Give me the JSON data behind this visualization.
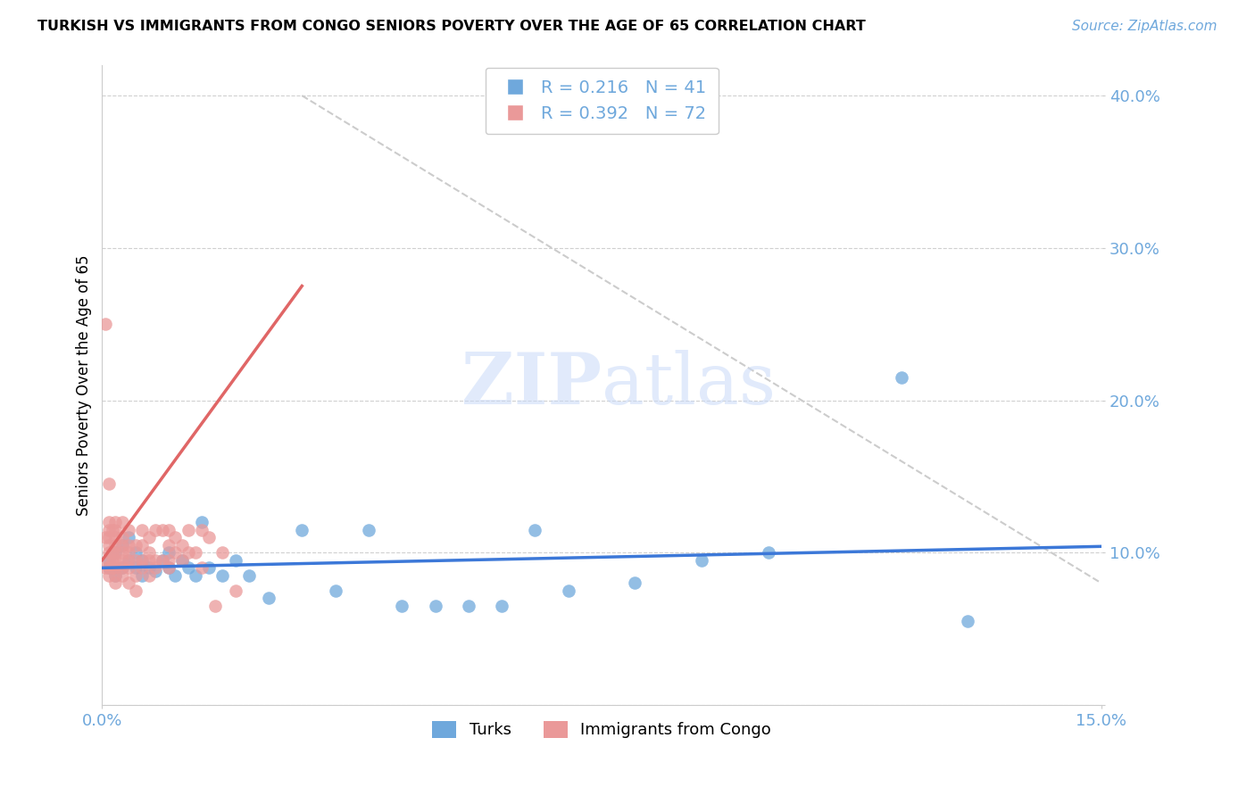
{
  "title": "TURKISH VS IMMIGRANTS FROM CONGO SENIORS POVERTY OVER THE AGE OF 65 CORRELATION CHART",
  "source": "Source: ZipAtlas.com",
  "ylabel": "Seniors Poverty Over the Age of 65",
  "xlim": [
    0.0,
    0.15
  ],
  "ylim": [
    0.0,
    0.42
  ],
  "yticks": [
    0.0,
    0.1,
    0.2,
    0.3,
    0.4
  ],
  "ytick_labels": [
    "",
    "10.0%",
    "20.0%",
    "30.0%",
    "40.0%"
  ],
  "R_turks": 0.216,
  "N_turks": 41,
  "R_congo": 0.392,
  "N_congo": 72,
  "turks_color": "#6fa8dc",
  "congo_color": "#ea9999",
  "turks_line_color": "#3c78d8",
  "congo_line_color": "#e06666",
  "diag_line_color": "#cccccc",
  "axis_label_color": "#6fa8dc",
  "watermark_color": "#c9daf8",
  "legend1_label": "Turks",
  "legend2_label": "Immigrants from Congo",
  "turks_x": [
    0.001,
    0.001,
    0.002,
    0.002,
    0.003,
    0.003,
    0.004,
    0.004,
    0.005,
    0.005,
    0.006,
    0.006,
    0.007,
    0.008,
    0.009,
    0.01,
    0.01,
    0.011,
    0.012,
    0.013,
    0.014,
    0.015,
    0.016,
    0.018,
    0.02,
    0.022,
    0.025,
    0.03,
    0.035,
    0.04,
    0.045,
    0.05,
    0.055,
    0.06,
    0.065,
    0.07,
    0.08,
    0.09,
    0.1,
    0.12,
    0.13
  ],
  "turks_y": [
    0.09,
    0.095,
    0.085,
    0.1,
    0.09,
    0.105,
    0.095,
    0.11,
    0.09,
    0.1,
    0.085,
    0.095,
    0.09,
    0.088,
    0.095,
    0.1,
    0.09,
    0.085,
    0.095,
    0.09,
    0.085,
    0.12,
    0.09,
    0.085,
    0.095,
    0.085,
    0.07,
    0.115,
    0.075,
    0.115,
    0.065,
    0.065,
    0.065,
    0.065,
    0.115,
    0.075,
    0.08,
    0.095,
    0.1,
    0.215,
    0.055
  ],
  "congo_x": [
    0.0005,
    0.0005,
    0.0005,
    0.001,
    0.001,
    0.001,
    0.001,
    0.001,
    0.001,
    0.001,
    0.001,
    0.001,
    0.0015,
    0.0015,
    0.0015,
    0.0015,
    0.002,
    0.002,
    0.002,
    0.002,
    0.002,
    0.002,
    0.002,
    0.002,
    0.002,
    0.003,
    0.003,
    0.003,
    0.003,
    0.003,
    0.003,
    0.003,
    0.004,
    0.004,
    0.004,
    0.004,
    0.004,
    0.004,
    0.005,
    0.005,
    0.005,
    0.005,
    0.006,
    0.006,
    0.006,
    0.006,
    0.007,
    0.007,
    0.007,
    0.007,
    0.008,
    0.008,
    0.008,
    0.009,
    0.009,
    0.01,
    0.01,
    0.01,
    0.01,
    0.011,
    0.011,
    0.012,
    0.012,
    0.013,
    0.013,
    0.014,
    0.015,
    0.015,
    0.016,
    0.017,
    0.018,
    0.02
  ],
  "congo_y": [
    0.09,
    0.11,
    0.25,
    0.085,
    0.09,
    0.095,
    0.1,
    0.105,
    0.11,
    0.115,
    0.12,
    0.145,
    0.09,
    0.095,
    0.1,
    0.115,
    0.08,
    0.085,
    0.09,
    0.095,
    0.1,
    0.105,
    0.11,
    0.115,
    0.12,
    0.085,
    0.09,
    0.095,
    0.1,
    0.105,
    0.11,
    0.12,
    0.08,
    0.09,
    0.095,
    0.1,
    0.105,
    0.115,
    0.075,
    0.085,
    0.095,
    0.105,
    0.09,
    0.095,
    0.105,
    0.115,
    0.085,
    0.095,
    0.1,
    0.11,
    0.09,
    0.095,
    0.115,
    0.095,
    0.115,
    0.09,
    0.095,
    0.105,
    0.115,
    0.1,
    0.11,
    0.095,
    0.105,
    0.1,
    0.115,
    0.1,
    0.09,
    0.115,
    0.11,
    0.065,
    0.1,
    0.075
  ],
  "congo_line_x": [
    0.0,
    0.03
  ],
  "congo_line_y": [
    0.095,
    0.275
  ]
}
